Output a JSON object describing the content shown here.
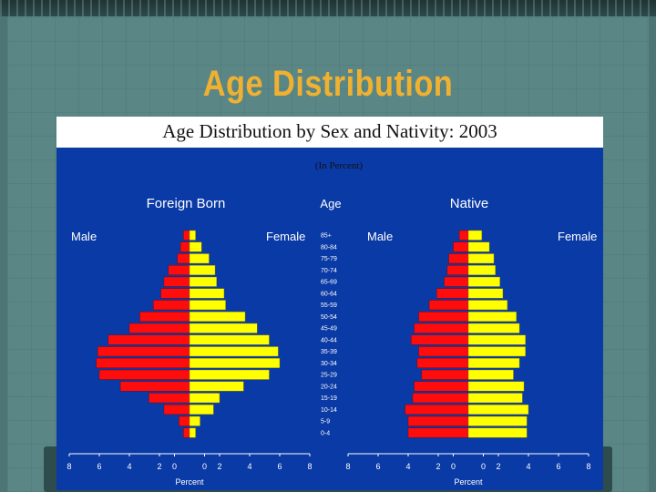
{
  "slide": {
    "title": "Age Distribution"
  },
  "colors": {
    "male": "#ff0d0d",
    "female": "#ffff00",
    "panel": "#0a3aa6",
    "title_bar": "#ffffff"
  },
  "chart_data": {
    "type": "bar",
    "orientation": "horizontal-population-pyramid",
    "title": "Age Distribution by Sex and Nativity: 2003",
    "subtitle": "(In Percent)",
    "age_header": "Age",
    "xlabel": "Percent",
    "xlim": [
      -8,
      8
    ],
    "x_ticks": [
      "8",
      "6",
      "4",
      "2",
      "0",
      "0",
      "2",
      "4",
      "6",
      "8"
    ],
    "categories": [
      "85+",
      "80-84",
      "75-79",
      "70-74",
      "65-69",
      "60-64",
      "55-59",
      "50-54",
      "45-49",
      "40-44",
      "35-39",
      "30-34",
      "25-29",
      "20-24",
      "15-19",
      "10-14",
      "5-9",
      "0-4"
    ],
    "panels": [
      {
        "name": "Foreign Born",
        "left_label": "Male",
        "right_label": "Female",
        "series": [
          {
            "name": "Male",
            "values": [
              0.4,
              0.6,
              0.8,
              1.4,
              1.7,
              1.9,
              2.4,
              3.3,
              4.0,
              5.4,
              6.1,
              6.2,
              6.0,
              4.6,
              2.7,
              1.7,
              0.7,
              0.4
            ]
          },
          {
            "name": "Female",
            "values": [
              0.4,
              0.8,
              1.3,
              1.7,
              1.8,
              2.3,
              2.4,
              3.7,
              4.5,
              5.3,
              5.9,
              6.0,
              5.3,
              3.6,
              2.0,
              1.6,
              0.7,
              0.4
            ]
          }
        ]
      },
      {
        "name": "Native",
        "left_label": "Male",
        "right_label": "Female",
        "series": [
          {
            "name": "Male",
            "values": [
              0.6,
              1.0,
              1.3,
              1.4,
              1.6,
              2.1,
              2.6,
              3.3,
              3.6,
              3.8,
              3.3,
              3.4,
              3.1,
              3.6,
              3.7,
              4.2,
              4.0,
              4.0
            ]
          },
          {
            "name": "Female",
            "values": [
              0.9,
              1.4,
              1.7,
              1.8,
              2.1,
              2.3,
              2.6,
              3.2,
              3.4,
              3.8,
              3.8,
              3.4,
              3.0,
              3.7,
              3.6,
              4.0,
              3.9,
              3.9
            ]
          }
        ]
      }
    ]
  }
}
